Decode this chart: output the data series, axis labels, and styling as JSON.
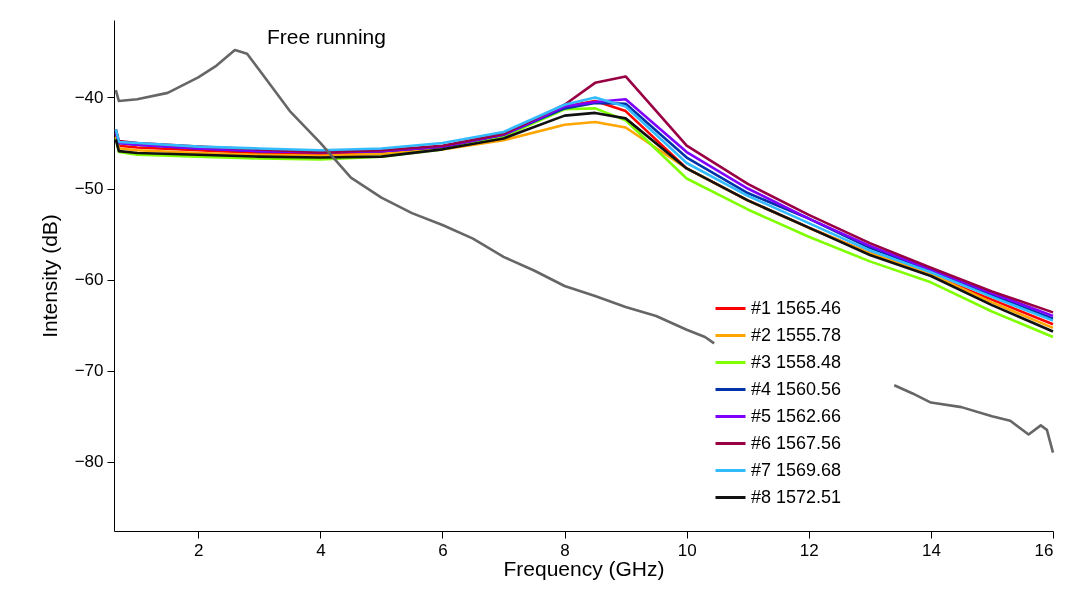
{
  "chart_data": {
    "type": "line",
    "xlabel": "Frequency (GHz)",
    "ylabel": "Intensity (dB)",
    "x": [
      0.65,
      0.7,
      1,
      2,
      3,
      4,
      5,
      6,
      7,
      8,
      8.5,
      9,
      10,
      11,
      12,
      13,
      14,
      15,
      16
    ],
    "series": [
      {
        "name": "#1 1565.46",
        "color": "#ff0000",
        "values": [
          -44,
          -45.3,
          -45.5,
          -45.8,
          -46.1,
          -46.2,
          -46.1,
          -45.5,
          -44.2,
          -41,
          -40.4,
          -41.5,
          -47.8,
          -51.3,
          -54.3,
          -57.1,
          -59.5,
          -62.2,
          -64.9
        ]
      },
      {
        "name": "#2 1555.78",
        "color": "#ffa500",
        "values": [
          -44.3,
          -45.6,
          -45.8,
          -46.1,
          -46.3,
          -46.4,
          -46.2,
          -45.7,
          -44.7,
          -43,
          -42.7,
          -43.3,
          -47.8,
          -51.3,
          -54.3,
          -57.1,
          -59.4,
          -62.5,
          -65.3
        ]
      },
      {
        "name": "#3 1558.48",
        "color": "#80ff00",
        "values": [
          -44.5,
          -46,
          -46.3,
          -46.5,
          -46.7,
          -46.8,
          -46.5,
          -45.7,
          -44.3,
          -41.3,
          -41.2,
          -42.5,
          -48.9,
          -52.3,
          -55.3,
          -58,
          -60.3,
          -63.5,
          -66.3
        ]
      },
      {
        "name": "#4 1560.56",
        "color": "#0033aa",
        "values": [
          -43.8,
          -45,
          -45.2,
          -45.6,
          -45.9,
          -46,
          -45.9,
          -45.4,
          -44.1,
          -41.2,
          -40.6,
          -40.7,
          -46.6,
          -50.5,
          -53.3,
          -56.5,
          -59,
          -61.7,
          -64.3
        ]
      },
      {
        "name": "#5 1562.66",
        "color": "#7f00ff",
        "values": [
          -43.8,
          -45,
          -45.2,
          -45.6,
          -45.9,
          -46,
          -45.9,
          -45.4,
          -44.1,
          -41,
          -40.5,
          -40.2,
          -46,
          -50,
          -53.3,
          -56.3,
          -58.9,
          -61.5,
          -64
        ]
      },
      {
        "name": "#6 1567.56",
        "color": "#990044",
        "values": [
          -43.5,
          -44.8,
          -45,
          -45.4,
          -45.7,
          -46,
          -45.8,
          -45.3,
          -44,
          -40.8,
          -38.4,
          -37.7,
          -45.3,
          -49.5,
          -52.9,
          -56,
          -58.7,
          -61.3,
          -63.6
        ]
      },
      {
        "name": "#7 1569.68",
        "color": "#33bbff",
        "values": [
          -43.5,
          -44.9,
          -45,
          -45.4,
          -45.6,
          -45.8,
          -45.6,
          -45,
          -43.8,
          -40.8,
          -40,
          -41,
          -47.2,
          -50.8,
          -53.8,
          -56.8,
          -59.2,
          -61.9,
          -64.5
        ]
      },
      {
        "name": "#8 1572.51",
        "color": "#111111",
        "values": [
          -44.6,
          -45.9,
          -46.1,
          -46.3,
          -46.5,
          -46.6,
          -46.5,
          -45.7,
          -44.5,
          -42,
          -41.7,
          -42.3,
          -47.8,
          -51.3,
          -54.3,
          -57.3,
          -59.6,
          -62.8,
          -65.7
        ]
      },
      {
        "name": "Free running",
        "color": "#666666",
        "x": [
          0.65,
          0.7,
          1,
          1.5,
          2,
          2.3,
          2.6,
          2.8,
          3,
          3.5,
          4,
          4.5,
          5,
          5.5,
          6,
          6.5,
          7,
          7.5,
          8,
          8.5,
          9,
          9.5,
          10,
          10.3,
          10.45,
          12,
          13.4,
          13.7,
          14,
          14.5,
          15,
          15.3,
          15.6,
          15.8,
          15.9,
          16
        ],
        "values": [
          -39.2,
          -40.4,
          -40.2,
          -39.5,
          -37.8,
          -36.5,
          -34.8,
          -35.2,
          -37,
          -41.5,
          -45,
          -48.8,
          -51,
          -52.7,
          -54,
          -55.5,
          -57.5,
          -59,
          -60.7,
          -61.8,
          -63,
          -64,
          -65.5,
          -66.3,
          -67,
          null,
          -71.6,
          -72.5,
          -73.5,
          -74,
          -75,
          -75.5,
          -77,
          -76,
          -76.5,
          -79
        ]
      }
    ],
    "xlim": [
      0.62,
      16
    ],
    "xticks": [
      2,
      4,
      6,
      8,
      10,
      12,
      14,
      16
    ],
    "ylim": [
      -87.6,
      -31.5
    ],
    "yticks": [
      -80,
      -70,
      -60,
      -50,
      -40
    ],
    "legend": "bottom right"
  }
}
